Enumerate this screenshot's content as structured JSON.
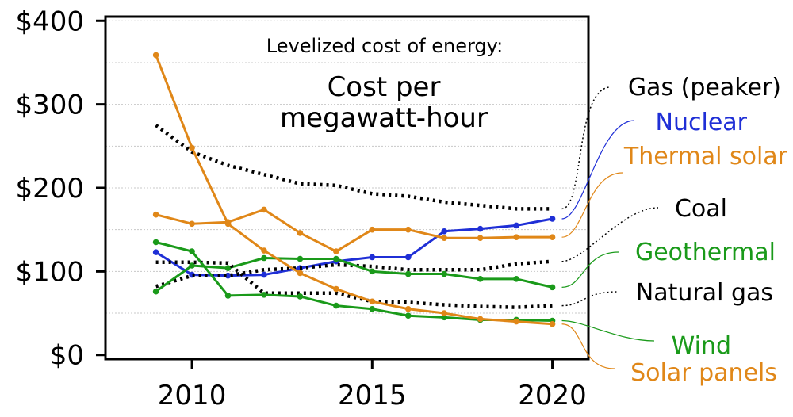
{
  "chart_data": {
    "type": "line",
    "title": "Levelized cost of energy:",
    "subtitle": [
      "Cost per",
      "megawatt-hour"
    ],
    "xlabel": "",
    "ylabel": "",
    "xlim": [
      2007.6,
      2021.0
    ],
    "ylim": [
      -5,
      405
    ],
    "x_ticks": [
      {
        "value": 2010,
        "label": "2010"
      },
      {
        "value": 2015,
        "label": "2015"
      },
      {
        "value": 2020,
        "label": "2020"
      }
    ],
    "y_ticks": [
      {
        "value": 0,
        "label": "$0"
      },
      {
        "value": 100,
        "label": "$100"
      },
      {
        "value": 200,
        "label": "$200"
      },
      {
        "value": 300,
        "label": "$300"
      },
      {
        "value": 400,
        "label": "$400"
      }
    ],
    "grid_y": [
      50,
      150,
      250,
      350
    ],
    "x": [
      2009,
      2010,
      2011,
      2012,
      2013,
      2014,
      2015,
      2016,
      2017,
      2018,
      2019,
      2020
    ],
    "series": [
      {
        "name": "Gas (peaker)",
        "color": "#000000",
        "dotted": true,
        "values": [
          275,
          243,
          227,
          216,
          205,
          203,
          193,
          190,
          183,
          179,
          175,
          175
        ]
      },
      {
        "name": "Nuclear",
        "color": "#1f2fd6",
        "dotted": false,
        "values": [
          123,
          96,
          95,
          96,
          104,
          112,
          117,
          117,
          148,
          151,
          155,
          163
        ]
      },
      {
        "name": "Thermal solar",
        "color": "#e08718",
        "dotted": false,
        "values": [
          168,
          157,
          159,
          174,
          146,
          124,
          150,
          150,
          140,
          140,
          141,
          141
        ]
      },
      {
        "name": "Coal",
        "color": "#000000",
        "dotted": true,
        "values": [
          82,
          95,
          95,
          102,
          104,
          108,
          106,
          102,
          102,
          102,
          109,
          112
        ]
      },
      {
        "name": "Geothermal",
        "color": "#1a9a1a",
        "dotted": false,
        "values": [
          76,
          107,
          104,
          116,
          115,
          115,
          100,
          97,
          97,
          91,
          91,
          81
        ]
      },
      {
        "name": "Natural gas",
        "color": "#000000",
        "dotted": true,
        "values": [
          111,
          111,
          110,
          74,
          74,
          74,
          64,
          63,
          60,
          58,
          57,
          59
        ]
      },
      {
        "name": "Wind",
        "color": "#1a9a1a",
        "dotted": false,
        "values": [
          135,
          124,
          71,
          72,
          70,
          59,
          55,
          47,
          45,
          42,
          42,
          41
        ]
      },
      {
        "name": "Solar panels",
        "color": "#e08718",
        "dotted": false,
        "values": [
          359,
          248,
          157,
          125,
          98,
          79,
          64,
          55,
          50,
          43,
          40,
          37
        ]
      }
    ]
  }
}
